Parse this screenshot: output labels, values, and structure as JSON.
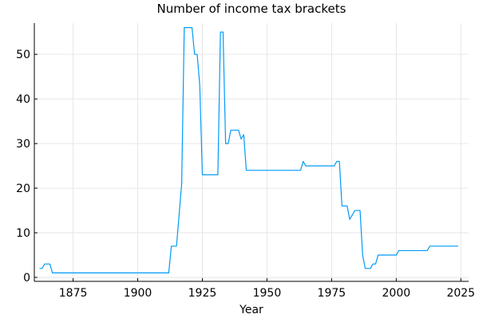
{
  "chart_data": {
    "type": "line",
    "title": "Number of income tax brackets",
    "xlabel": "Year",
    "ylabel": "",
    "xlim": [
      1860,
      2028
    ],
    "ylim": [
      0,
      57
    ],
    "xticks": [
      1875,
      1900,
      1925,
      1950,
      1975,
      2000,
      2025
    ],
    "yticks": [
      0,
      10,
      20,
      30,
      40,
      50
    ],
    "grid": true,
    "legend": "none",
    "colors": {
      "series": "#009af9",
      "grid": "#e6e6e6",
      "axis": "#000000"
    },
    "series": [
      {
        "points": [
          [
            1862,
            2
          ],
          [
            1863,
            2
          ],
          [
            1864,
            3
          ],
          [
            1865,
            3
          ],
          [
            1866,
            3
          ],
          [
            1867,
            1
          ],
          [
            1870,
            1
          ],
          [
            1880,
            1
          ],
          [
            1890,
            1
          ],
          [
            1900,
            1
          ],
          [
            1910,
            1
          ],
          [
            1912,
            1
          ],
          [
            1913,
            7
          ],
          [
            1914,
            7
          ],
          [
            1915,
            7
          ],
          [
            1916,
            14
          ],
          [
            1917,
            21
          ],
          [
            1918,
            56
          ],
          [
            1919,
            56
          ],
          [
            1920,
            56
          ],
          [
            1921,
            56
          ],
          [
            1922,
            50
          ],
          [
            1923,
            50
          ],
          [
            1924,
            43
          ],
          [
            1925,
            23
          ],
          [
            1926,
            23
          ],
          [
            1927,
            23
          ],
          [
            1928,
            23
          ],
          [
            1929,
            23
          ],
          [
            1930,
            23
          ],
          [
            1931,
            23
          ],
          [
            1932,
            55
          ],
          [
            1933,
            55
          ],
          [
            1934,
            30
          ],
          [
            1935,
            30
          ],
          [
            1936,
            33
          ],
          [
            1937,
            33
          ],
          [
            1938,
            33
          ],
          [
            1939,
            33
          ],
          [
            1940,
            31
          ],
          [
            1941,
            32
          ],
          [
            1942,
            24
          ],
          [
            1945,
            24
          ],
          [
            1950,
            24
          ],
          [
            1955,
            24
          ],
          [
            1960,
            24
          ],
          [
            1963,
            24
          ],
          [
            1964,
            26
          ],
          [
            1965,
            25
          ],
          [
            1970,
            25
          ],
          [
            1976,
            25
          ],
          [
            1977,
            26
          ],
          [
            1978,
            26
          ],
          [
            1979,
            16
          ],
          [
            1980,
            16
          ],
          [
            1981,
            16
          ],
          [
            1982,
            13
          ],
          [
            1983,
            14
          ],
          [
            1984,
            15
          ],
          [
            1985,
            15
          ],
          [
            1986,
            15
          ],
          [
            1987,
            5
          ],
          [
            1988,
            2
          ],
          [
            1989,
            2
          ],
          [
            1990,
            2
          ],
          [
            1991,
            3
          ],
          [
            1992,
            3
          ],
          [
            1993,
            5
          ],
          [
            1995,
            5
          ],
          [
            2000,
            5
          ],
          [
            2001,
            6
          ],
          [
            2005,
            6
          ],
          [
            2010,
            6
          ],
          [
            2012,
            6
          ],
          [
            2013,
            7
          ],
          [
            2015,
            7
          ],
          [
            2020,
            7
          ],
          [
            2024,
            7
          ]
        ]
      }
    ]
  }
}
